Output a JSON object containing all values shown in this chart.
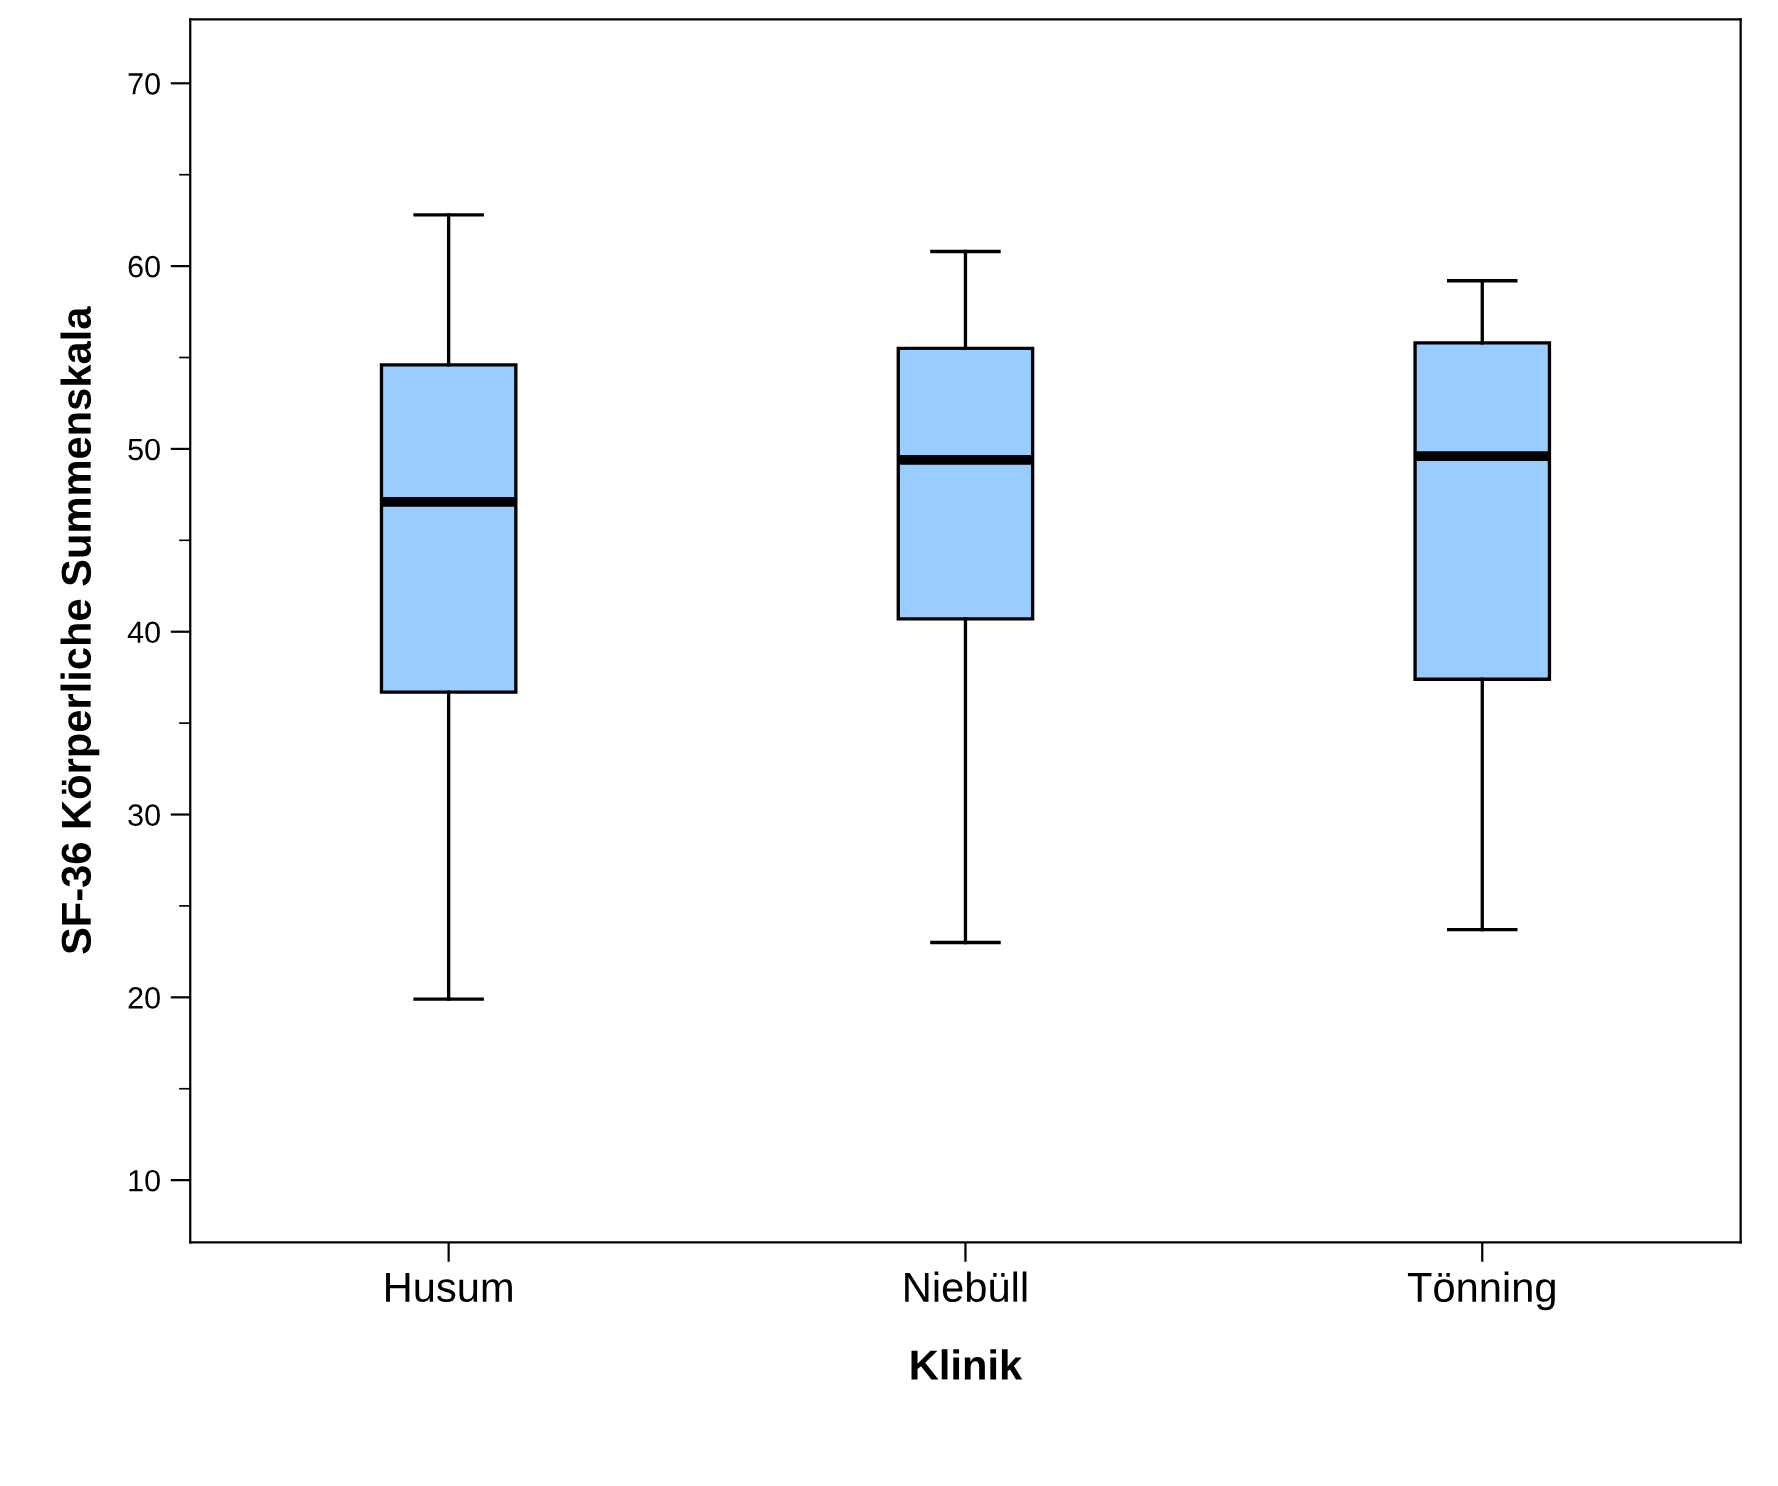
{
  "chart_data": {
    "type": "box",
    "xlabel": "Klinik",
    "ylabel": "SF-36 Körperliche Summenskala",
    "categories": [
      "Husum",
      "Niebüll",
      "Tönning"
    ],
    "boxes": [
      {
        "low": 19.9,
        "q1": 36.7,
        "median": 47.1,
        "q3": 54.6,
        "high": 62.8
      },
      {
        "low": 23.0,
        "q1": 40.7,
        "median": 49.4,
        "q3": 55.5,
        "high": 60.8
      },
      {
        "low": 23.7,
        "q1": 37.4,
        "median": 49.6,
        "q3": 55.8,
        "high": 59.2
      }
    ],
    "color": "#99ccff",
    "ylim": [
      6.6,
      73.5
    ],
    "yticks": [
      10,
      {
        "value": 15,
        "label": null
      },
      20,
      {
        "value": 25,
        "label": null
      },
      30,
      {
        "value": 35,
        "label": null
      },
      40,
      {
        "value": 45,
        "label": null
      },
      50,
      {
        "value": 55,
        "label": null
      },
      60,
      {
        "value": 65,
        "label": null
      },
      70
    ],
    "grid": false,
    "legend": false
  }
}
